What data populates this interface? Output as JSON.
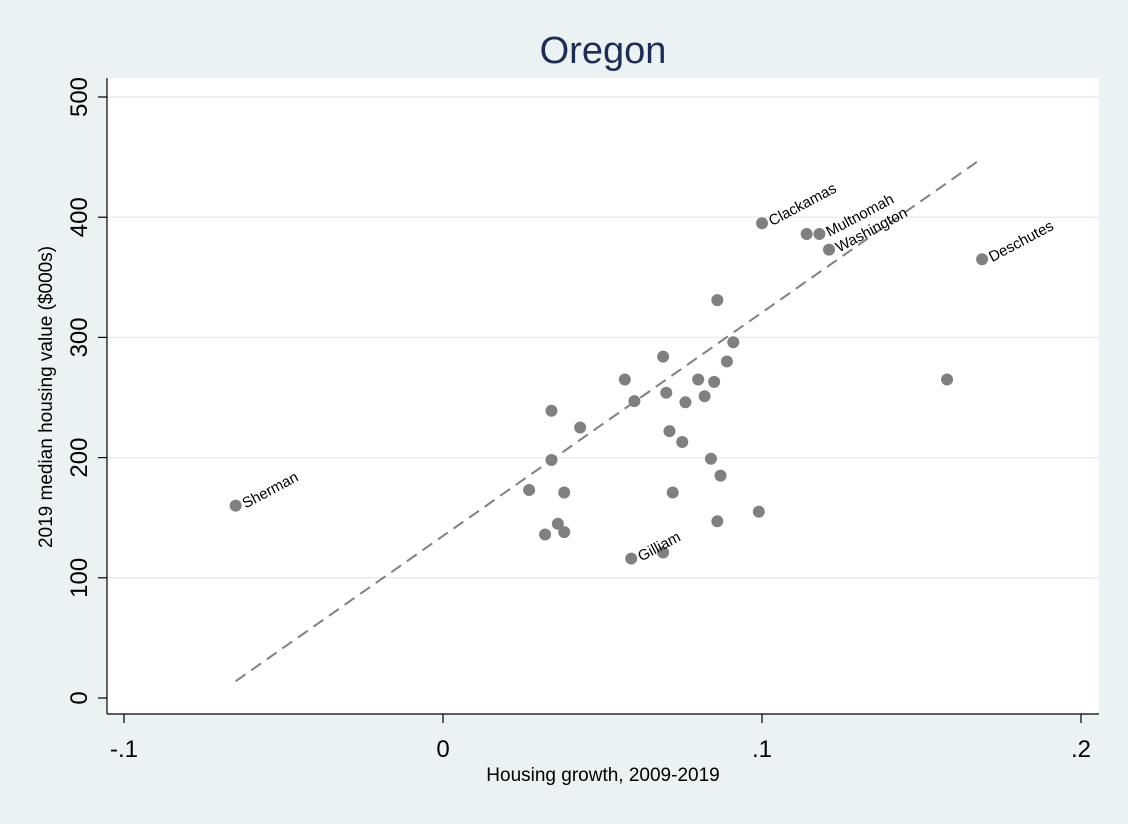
{
  "chart_data": {
    "type": "scatter",
    "title": "Oregon",
    "xlabel": "Housing growth, 2009-2019",
    "ylabel": "2019 median housing value ($000s)",
    "xlim": [
      -0.1,
      0.2
    ],
    "ylim": [
      0,
      500
    ],
    "x_ticks": [
      {
        "value": -0.1,
        "label": "-.1"
      },
      {
        "value": 0,
        "label": "0"
      },
      {
        "value": 0.1,
        "label": ".1"
      },
      {
        "value": 0.2,
        "label": ".2"
      }
    ],
    "y_ticks": [
      {
        "value": 0,
        "label": "0"
      },
      {
        "value": 100,
        "label": "100"
      },
      {
        "value": 200,
        "label": "200"
      },
      {
        "value": 300,
        "label": "300"
      },
      {
        "value": 400,
        "label": "400"
      },
      {
        "value": 500,
        "label": "500"
      }
    ],
    "grid": true,
    "marker_color": "#808080",
    "fit_line_color": "#808080",
    "points": [
      {
        "x": -0.065,
        "y": 160,
        "label": "Sherman"
      },
      {
        "x": 0.1,
        "y": 395,
        "label": "Clackamas"
      },
      {
        "x": 0.118,
        "y": 386,
        "label": "Multnomah"
      },
      {
        "x": 0.121,
        "y": 373,
        "label": "Washington"
      },
      {
        "x": 0.169,
        "y": 365,
        "label": "Deschutes"
      },
      {
        "x": 0.059,
        "y": 116,
        "label": "Gilliam"
      },
      {
        "x": 0.114,
        "y": 386
      },
      {
        "x": 0.158,
        "y": 265
      },
      {
        "x": 0.086,
        "y": 331
      },
      {
        "x": 0.091,
        "y": 296
      },
      {
        "x": 0.089,
        "y": 280
      },
      {
        "x": 0.069,
        "y": 284
      },
      {
        "x": 0.057,
        "y": 265
      },
      {
        "x": 0.08,
        "y": 265
      },
      {
        "x": 0.085,
        "y": 263
      },
      {
        "x": 0.07,
        "y": 254
      },
      {
        "x": 0.082,
        "y": 251
      },
      {
        "x": 0.06,
        "y": 247
      },
      {
        "x": 0.076,
        "y": 246
      },
      {
        "x": 0.034,
        "y": 239
      },
      {
        "x": 0.043,
        "y": 225
      },
      {
        "x": 0.071,
        "y": 222
      },
      {
        "x": 0.075,
        "y": 213
      },
      {
        "x": 0.084,
        "y": 199
      },
      {
        "x": 0.034,
        "y": 198
      },
      {
        "x": 0.087,
        "y": 185
      },
      {
        "x": 0.027,
        "y": 173
      },
      {
        "x": 0.038,
        "y": 171
      },
      {
        "x": 0.072,
        "y": 171
      },
      {
        "x": 0.099,
        "y": 155
      },
      {
        "x": 0.086,
        "y": 147
      },
      {
        "x": 0.036,
        "y": 145
      },
      {
        "x": 0.038,
        "y": 138
      },
      {
        "x": 0.032,
        "y": 136
      },
      {
        "x": 0.069,
        "y": 121
      }
    ],
    "fit_line": {
      "x": [
        -0.065,
        0.169
      ],
      "y": [
        14,
        449
      ]
    }
  }
}
